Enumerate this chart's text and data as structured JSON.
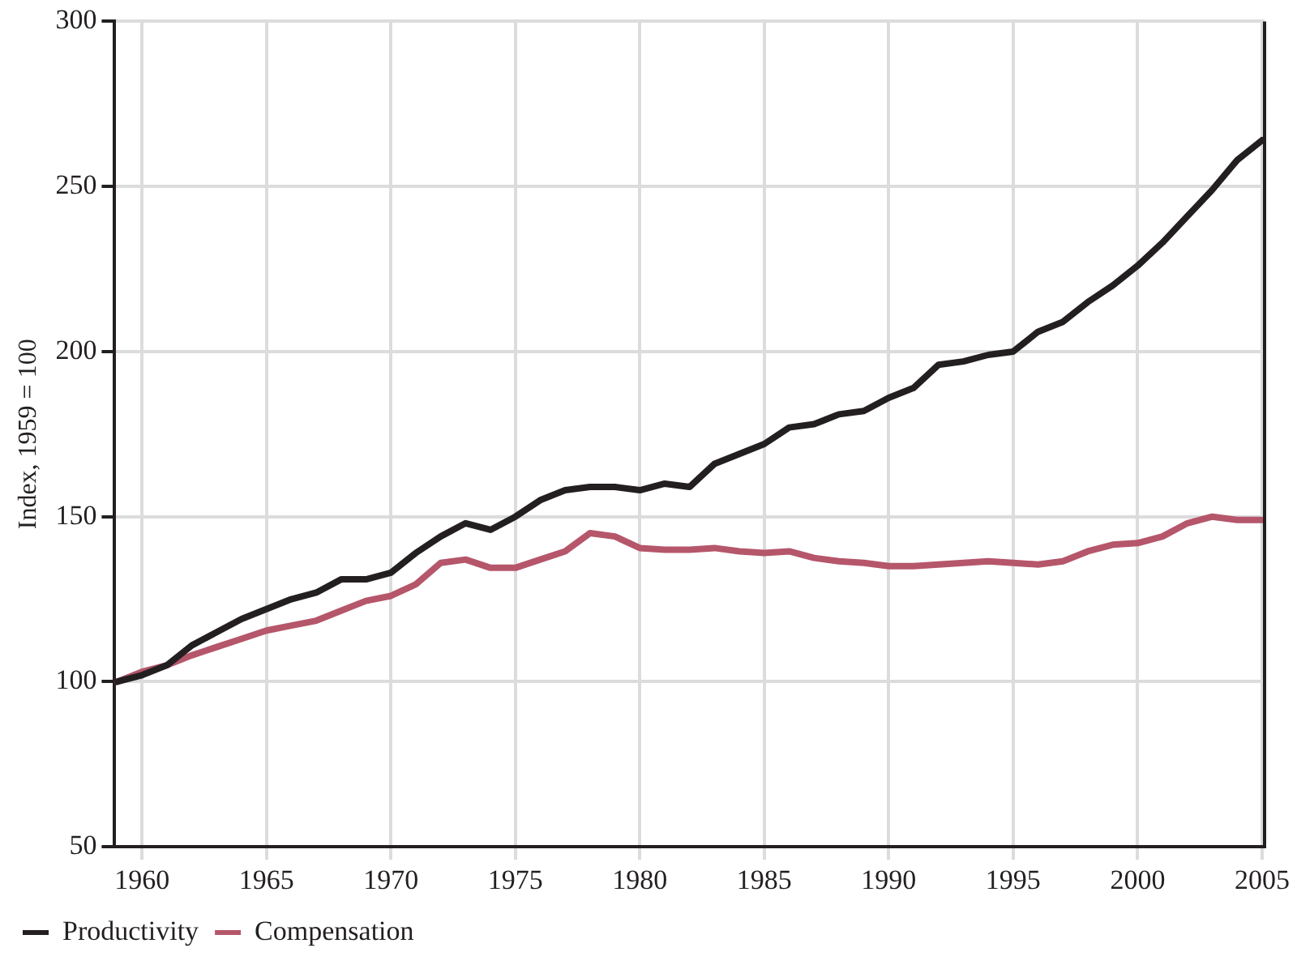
{
  "chart_data": {
    "type": "line",
    "ylabel": "Index, 1959 = 100",
    "x": [
      1959,
      1960,
      1961,
      1962,
      1963,
      1964,
      1965,
      1966,
      1967,
      1968,
      1969,
      1970,
      1971,
      1972,
      1973,
      1974,
      1975,
      1976,
      1977,
      1978,
      1979,
      1980,
      1981,
      1982,
      1983,
      1984,
      1985,
      1986,
      1987,
      1988,
      1989,
      1990,
      1991,
      1992,
      1993,
      1994,
      1995,
      1996,
      1997,
      1998,
      1999,
      2000,
      2001,
      2002,
      2003,
      2004,
      2005
    ],
    "series": [
      {
        "name": "Productivity",
        "color": "#231f20",
        "values": [
          100,
          102,
          105,
          111,
          115,
          119,
          122,
          125,
          127,
          131,
          131,
          133,
          139,
          144,
          148,
          146,
          150,
          155,
          158,
          159,
          159,
          158,
          160,
          159,
          166,
          169,
          172,
          177,
          178,
          181,
          182,
          186,
          189,
          196,
          197,
          199,
          200,
          206,
          209,
          215,
          220,
          226,
          233,
          241,
          249,
          258,
          264
        ]
      },
      {
        "name": "Compensation",
        "color": "#b5566b",
        "values": [
          100,
          103,
          105,
          108,
          110.5,
          113,
          115.5,
          117,
          118.5,
          121.5,
          124.5,
          126,
          129.5,
          136,
          137,
          134.5,
          134.5,
          137,
          139.5,
          145,
          144,
          140.5,
          140,
          140,
          140.5,
          139.5,
          139,
          139.5,
          137.5,
          136.5,
          136,
          135,
          135,
          135.5,
          136,
          136.5,
          136,
          135.5,
          136.5,
          139.5,
          141.5,
          142,
          144,
          148,
          150,
          149,
          149
        ]
      }
    ],
    "xlim": [
      1958.9,
      2005.1
    ],
    "xticks": [
      1960,
      1965,
      1970,
      1975,
      1980,
      1985,
      1990,
      1995,
      2000,
      2005
    ],
    "ylim": [
      50,
      300
    ],
    "yticks": [
      50,
      100,
      150,
      200,
      250,
      300
    ],
    "grid": true,
    "legend": "bottom left",
    "marker": "none",
    "line_style": "solid"
  }
}
